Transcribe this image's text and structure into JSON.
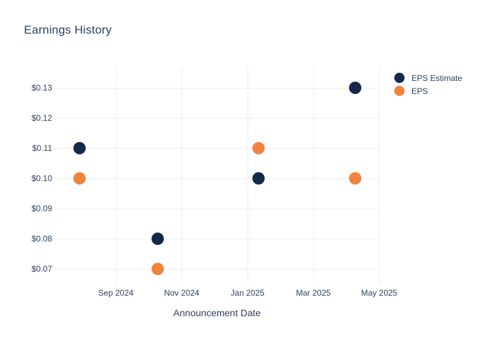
{
  "chart_data": {
    "type": "scatter",
    "title": "Earnings History",
    "xlabel": "Announcement Date",
    "ylabel": "",
    "grid": true,
    "legend_position": "outside-top-right",
    "x_unit": "months after Sep 1, 2024",
    "x_axis": {
      "range_m": [
        -1.854,
        8.0
      ],
      "ticks": [
        {
          "label": "Sep 2024",
          "m": 0
        },
        {
          "label": "Nov 2024",
          "m": 2
        },
        {
          "label": "Jan 2025",
          "m": 4
        },
        {
          "label": "Mar 2025",
          "m": 6
        },
        {
          "label": "May 2025",
          "m": 8
        }
      ]
    },
    "y_axis": {
      "range": [
        0.0652,
        0.1368
      ],
      "ticks": [
        {
          "label": "$0.13",
          "v": 0.13
        },
        {
          "label": "$0.12",
          "v": 0.12
        },
        {
          "label": "$0.11",
          "v": 0.11
        },
        {
          "label": "$0.10",
          "v": 0.1
        },
        {
          "label": "$0.09",
          "v": 0.09
        },
        {
          "label": "$0.08",
          "v": 0.08
        },
        {
          "label": "$0.07",
          "v": 0.07
        }
      ]
    },
    "series": [
      {
        "name": "EPS Estimate",
        "color": "#15294a",
        "marker_size": 18,
        "points": [
          {
            "m": -1.104,
            "v": 0.11,
            "date_approx": "~Jul 29 2024"
          },
          {
            "m": 1.271,
            "v": 0.08,
            "date_approx": "~Oct 9 2024"
          },
          {
            "m": 4.333,
            "v": 0.1,
            "date_approx": "~Jan 11 2025"
          },
          {
            "m": 7.271,
            "v": 0.13,
            "date_approx": "~Apr 9 2025"
          }
        ]
      },
      {
        "name": "EPS",
        "color": "#f1843c",
        "marker_size": 18,
        "points": [
          {
            "m": -1.104,
            "v": 0.1,
            "date_approx": "~Jul 29 2024"
          },
          {
            "m": 1.271,
            "v": 0.07,
            "date_approx": "~Oct 9 2024"
          },
          {
            "m": 4.333,
            "v": 0.11,
            "date_approx": "~Jan 11 2025"
          },
          {
            "m": 7.271,
            "v": 0.1,
            "date_approx": "~Apr 9 2025"
          }
        ]
      }
    ],
    "colors": {
      "background": "#ffffff",
      "grid": "#e9eef6",
      "text": "#2a3f5f"
    }
  }
}
